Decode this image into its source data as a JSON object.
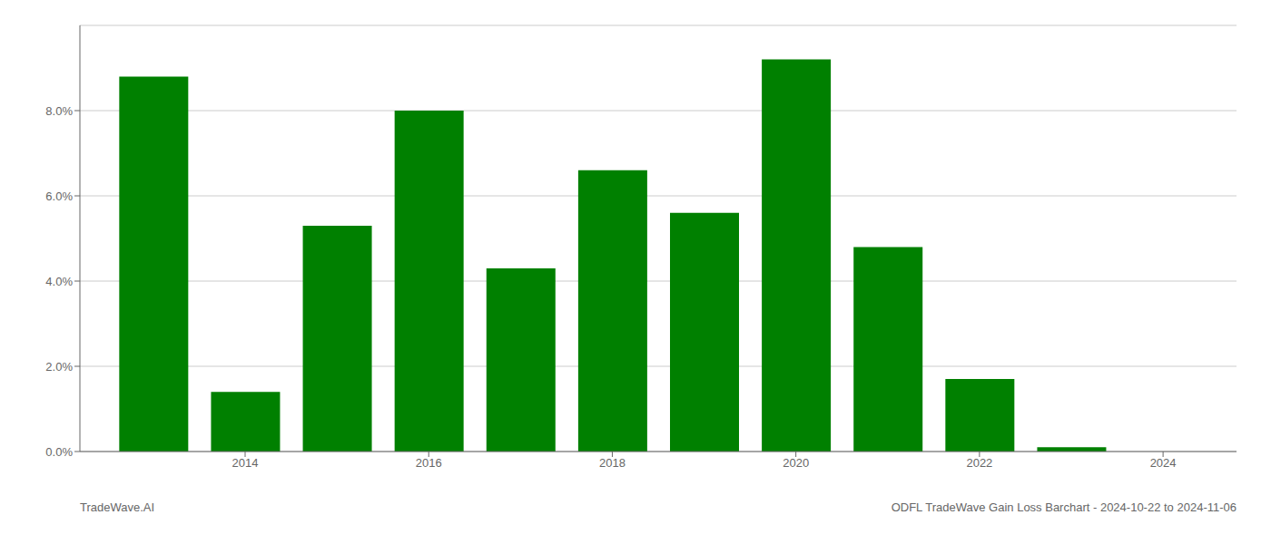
{
  "chart_data": {
    "type": "bar",
    "x": [
      2013,
      2014,
      2015,
      2016,
      2017,
      2018,
      2019,
      2020,
      2021,
      2022,
      2023
    ],
    "values": [
      0.088,
      0.014,
      0.053,
      0.08,
      0.043,
      0.066,
      0.056,
      0.092,
      0.048,
      0.017,
      0.001
    ],
    "color": "#008000",
    "xlim": [
      2012.2,
      2024.8
    ],
    "xticks": [
      2014,
      2016,
      2018,
      2020,
      2022,
      2024
    ],
    "ylim": [
      0,
      0.1
    ],
    "yticks": [
      {
        "value": 0.0,
        "label": "0.0%"
      },
      {
        "value": 0.02,
        "label": "2.0%"
      },
      {
        "value": 0.04,
        "label": "4.0%"
      },
      {
        "value": 0.06,
        "label": "6.0%"
      },
      {
        "value": 0.08,
        "label": "8.0%"
      }
    ],
    "grid": true,
    "annotations": [
      "TradeWave.AI",
      "ODFL TradeWave Gain Loss Barchart - 2024-10-22 to 2024-11-06"
    ]
  }
}
